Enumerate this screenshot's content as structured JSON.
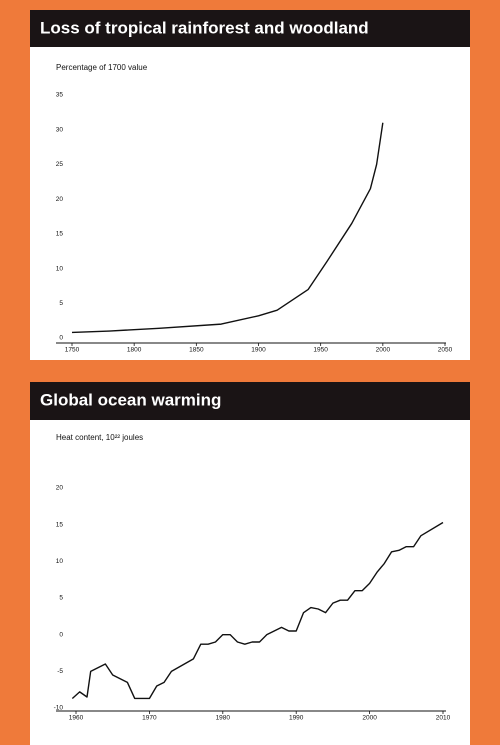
{
  "chart_data": [
    {
      "type": "line",
      "title": "Loss of tropical rainforest and woodland",
      "y_label": "Percentage of 1700 value",
      "x": [
        1750,
        1780,
        1820,
        1870,
        1900,
        1915,
        1940,
        1955,
        1975,
        1990,
        1995,
        2000
      ],
      "values": [
        0.8,
        1,
        1.4,
        2,
        3.2,
        4,
        7,
        11,
        16.5,
        21.5,
        25,
        31
      ],
      "color": "#111111",
      "xlim": [
        1750,
        2050
      ],
      "xticks": [
        1750,
        1800,
        1850,
        1900,
        1950,
        2000,
        2050
      ],
      "ylim": [
        0,
        35
      ],
      "yticks": [
        0,
        5,
        10,
        15,
        20,
        25,
        30,
        35
      ]
    },
    {
      "type": "line",
      "title": "Global ocean warming",
      "y_label": "Heat content, 10²² joules",
      "x": [
        1959.5,
        1960.5,
        1961.5,
        1962,
        1964,
        1965,
        1967,
        1968,
        1970,
        1971,
        1972,
        1973,
        1976,
        1977,
        1978,
        1979,
        1980,
        1981,
        1982,
        1983,
        1984,
        1985,
        1986,
        1987,
        1988,
        1989,
        1990,
        1991,
        1992,
        1993,
        1994,
        1995,
        1996,
        1997,
        1998,
        1999,
        2000,
        2001,
        2002,
        2003,
        2004,
        2005,
        2006,
        2007,
        2010
      ],
      "values": [
        -8.7,
        -7.8,
        -8.5,
        -5,
        -4,
        -5.5,
        -6.5,
        -8.7,
        -8.7,
        -7,
        -6.5,
        -5,
        -3.3,
        -1.3,
        -1.3,
        -1,
        0,
        0,
        -1,
        -1.3,
        -1,
        -1,
        0,
        0.5,
        1,
        0.5,
        0.5,
        3,
        3.7,
        3.5,
        3,
        4.3,
        4.7,
        4.7,
        6,
        6,
        7,
        8.5,
        9.7,
        11.3,
        11.5,
        12,
        12,
        13.5,
        15.3
      ],
      "color": "#111111",
      "xlim": [
        1960,
        2010
      ],
      "xticks": [
        1960,
        1970,
        1980,
        1990,
        2000,
        2010
      ],
      "ylim": [
        -10,
        20
      ],
      "yticks": [
        -10,
        -5,
        0,
        5,
        10,
        15,
        20
      ]
    }
  ]
}
